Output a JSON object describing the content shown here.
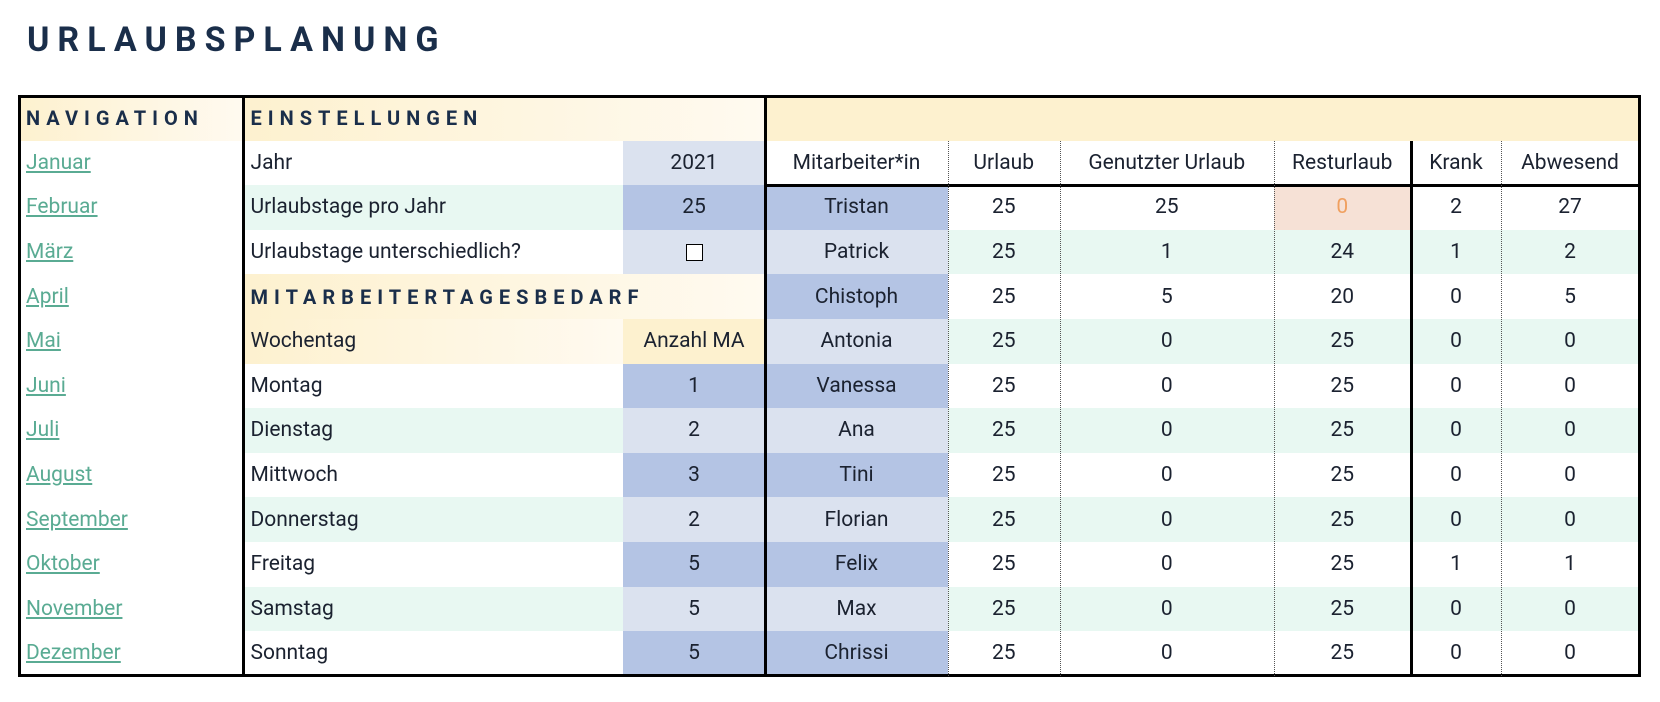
{
  "title": "URLAUBSPLANUNG",
  "navigation": {
    "heading": "NAVIGATION",
    "months": [
      "Januar",
      "Februar",
      "März",
      "April",
      "Mai",
      "Juni",
      "Juli",
      "August",
      "September",
      "Oktober",
      "November",
      "Dezember"
    ]
  },
  "settings": {
    "heading": "EINSTELLUNGEN",
    "rows": [
      [
        "Jahr",
        2021
      ],
      [
        "Urlaubstage pro Jahr",
        25
      ],
      [
        "Urlaubstage unterschiedlich?"
      ]
    ]
  },
  "demand": {
    "heading": "MITARBEITERTAGESBEDARF",
    "columns": [
      "Wochentag",
      "Anzahl MA"
    ],
    "rows": [
      [
        "Montag",
        1
      ],
      [
        "Dienstag",
        2
      ],
      [
        "Mittwoch",
        3
      ],
      [
        "Donnerstag",
        2
      ],
      [
        "Freitag",
        5
      ],
      [
        "Samstag",
        5
      ],
      [
        "Sonntag",
        5
      ]
    ]
  },
  "employees": {
    "columns": [
      "Mitarbeiter*in",
      "Urlaub",
      "Genutzter Urlaub",
      "Resturlaub",
      "Krank",
      "Abwesend"
    ],
    "rows": [
      [
        "Tristan",
        25,
        25,
        0,
        2,
        27
      ],
      [
        "Patrick",
        25,
        1,
        24,
        1,
        2
      ],
      [
        "Chistoph",
        25,
        5,
        20,
        0,
        5
      ],
      [
        "Antonia",
        25,
        0,
        25,
        0,
        0
      ],
      [
        "Vanessa",
        25,
        0,
        25,
        0,
        0
      ],
      [
        "Ana",
        25,
        0,
        25,
        0,
        0
      ],
      [
        "Tini",
        25,
        0,
        25,
        0,
        0
      ],
      [
        "Florian",
        25,
        0,
        25,
        0,
        0
      ],
      [
        "Felix",
        25,
        0,
        25,
        1,
        1
      ],
      [
        "Max",
        25,
        0,
        25,
        0,
        0
      ],
      [
        "Chrissi",
        25,
        0,
        25,
        0,
        0
      ]
    ]
  }
}
